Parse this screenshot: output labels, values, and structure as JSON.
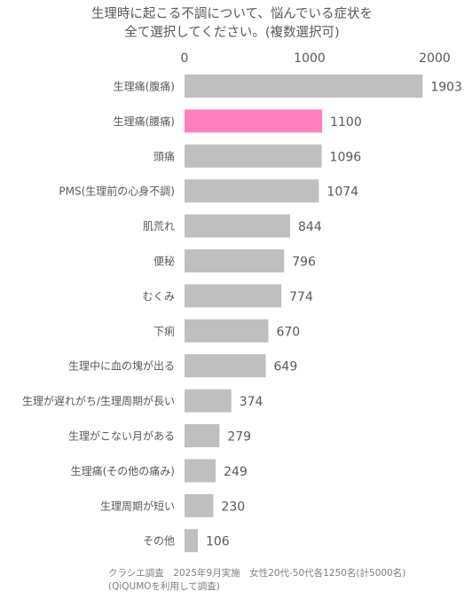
{
  "chart_data": {
    "type": "bar",
    "orientation": "horizontal",
    "title_lines": [
      "生理時に起こる不調について、悩んでいる症状を",
      "全て選択してください。(複数選択可)"
    ],
    "categories": [
      "生理痛(腹痛)",
      "生理痛(腰痛)",
      "頭痛",
      "PMS(生理前の心身不調)",
      "肌荒れ",
      "便秘",
      "むくみ",
      "下痢",
      "生理中に血の塊が出る",
      "生理が遅れがち/生理周期が長い",
      "生理がこない月がある",
      "生理痛(その他の痛み)",
      "生理周期が短い",
      "その他"
    ],
    "values": [
      1903,
      1100,
      1096,
      1074,
      844,
      796,
      774,
      670,
      649,
      374,
      279,
      249,
      230,
      106
    ],
    "highlight_index": 1,
    "xlim": [
      0,
      2000
    ],
    "xticks": [
      "0",
      "1000",
      "2000"
    ],
    "axis_position": "top",
    "grid": false,
    "colors": {
      "bar": "#bfbfbf",
      "highlight": "#ff7fbf",
      "text": "#595959"
    }
  },
  "footer": {
    "line1": "クラシエ調査　2025年9月実施　女性20代-50代各1250名(計5000名)",
    "line2": "(QiQUMOを利用して調査)"
  }
}
